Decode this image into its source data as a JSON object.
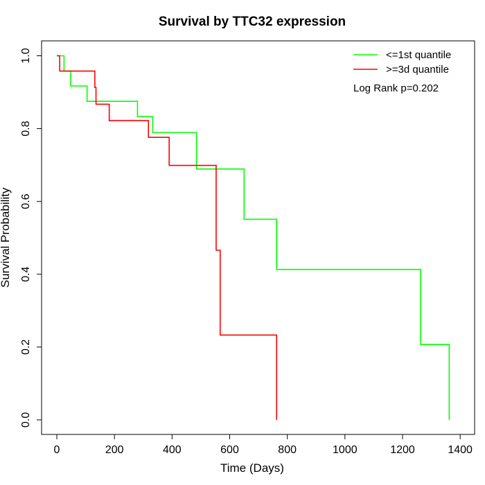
{
  "chart_data": {
    "type": "line",
    "title": "Survival by TTC32 expression",
    "xlabel": "Time (Days)",
    "ylabel": "Survival Probability",
    "xlim": [
      0,
      1400
    ],
    "ylim": [
      0,
      1
    ],
    "x_ticks": [
      0,
      200,
      400,
      600,
      800,
      1000,
      1200,
      1400
    ],
    "y_ticks": [
      0.0,
      0.2,
      0.4,
      0.6,
      0.8,
      1.0
    ],
    "x_tick_labels": [
      "0",
      "200",
      "400",
      "600",
      "800",
      "1000",
      "1200",
      "1400"
    ],
    "y_tick_labels": [
      "0.0",
      "0.2",
      "0.4",
      "0.6",
      "0.8",
      "1.0"
    ],
    "grid": false,
    "legend_position": "top-right",
    "annotation": "Log Rank p=0.202",
    "series": [
      {
        "name": "<=1st quantile",
        "color": "#00ff00",
        "steps": [
          [
            0,
            1.0
          ],
          [
            25,
            0.958
          ],
          [
            48,
            0.917
          ],
          [
            105,
            0.875
          ],
          [
            280,
            0.833
          ],
          [
            333,
            0.789
          ],
          [
            485,
            0.689
          ],
          [
            650,
            0.551
          ],
          [
            763,
            0.413
          ],
          [
            1263,
            0.207
          ],
          [
            1362,
            0.0
          ]
        ],
        "end_x": 1362
      },
      {
        "name": ">=3d quantile",
        "color": "#ff0000",
        "steps": [
          [
            0,
            1.0
          ],
          [
            10,
            0.958
          ],
          [
            132,
            0.913
          ],
          [
            136,
            0.867
          ],
          [
            182,
            0.822
          ],
          [
            318,
            0.776
          ],
          [
            390,
            0.699
          ],
          [
            553,
            0.466
          ],
          [
            567,
            0.233
          ],
          [
            763,
            0.0
          ]
        ],
        "end_x": 763
      }
    ]
  }
}
